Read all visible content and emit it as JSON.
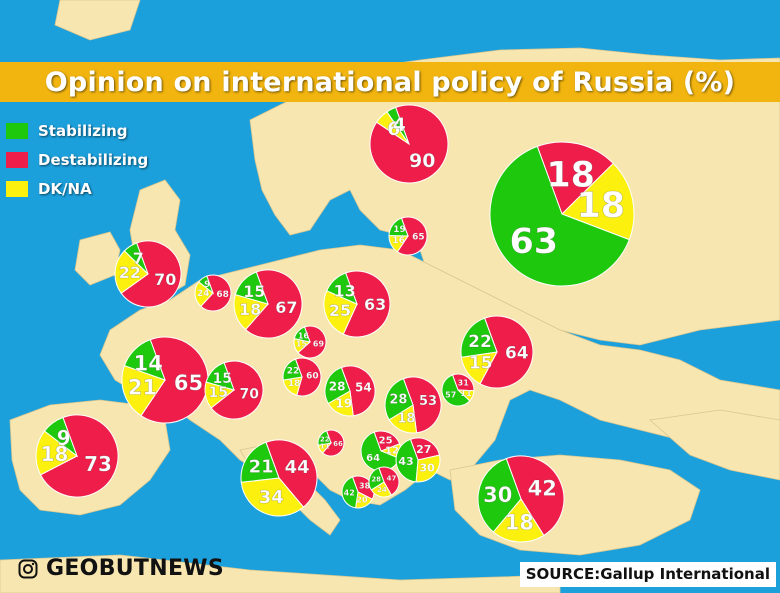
{
  "title": "Opinion on international policy of Russia (%)",
  "colors": {
    "stabilizing": "#1ec80c",
    "destabilizing": "#ef1d4a",
    "dk_na": "#fbf00e",
    "sea": "#1ca0dc",
    "land": "#f7e6b0",
    "title_bar": "#f2b50f"
  },
  "legend": {
    "stabilizing": "Stabilizing",
    "destabilizing": "Destabilizing",
    "dk_na": "DK/NA"
  },
  "brand": {
    "icon": "instagram-icon",
    "name": "GEOBUTNEWS"
  },
  "source": "SOURCE:Gallup International",
  "regions": [
    {
      "id": "finland",
      "values": {
        "stabilizing": 4,
        "destabilizing": 90,
        "dk_na": 6
      },
      "labels": {
        "stabilizing": "4",
        "destabilizing": "90",
        "dk_na": "6"
      }
    },
    {
      "id": "russia",
      "values": {
        "stabilizing": 63,
        "destabilizing": 18,
        "dk_na": 18
      },
      "labels": {
        "stabilizing": "63",
        "destabilizing": "18",
        "dk_na": "18"
      }
    },
    {
      "id": "latvia",
      "values": {
        "stabilizing": 19,
        "destabilizing": 65,
        "dk_na": 16
      },
      "labels": {
        "stabilizing": "19",
        "destabilizing": "65",
        "dk_na": "16"
      }
    },
    {
      "id": "uk",
      "values": {
        "stabilizing": 7,
        "destabilizing": 70,
        "dk_na": 22
      },
      "labels": {
        "stabilizing": "7",
        "destabilizing": "70",
        "dk_na": "22"
      }
    },
    {
      "id": "netherlands",
      "values": {
        "stabilizing": 9,
        "destabilizing": 68,
        "dk_na": 24
      },
      "labels": {
        "stabilizing": "9",
        "destabilizing": "68",
        "dk_na": "24"
      }
    },
    {
      "id": "germany",
      "values": {
        "stabilizing": 15,
        "destabilizing": 67,
        "dk_na": 18
      },
      "labels": {
        "stabilizing": "15",
        "destabilizing": "67",
        "dk_na": "18"
      }
    },
    {
      "id": "poland",
      "values": {
        "stabilizing": 13,
        "destabilizing": 63,
        "dk_na": 25
      },
      "labels": {
        "stabilizing": "13",
        "destabilizing": "63",
        "dk_na": "25"
      }
    },
    {
      "id": "czechia",
      "values": {
        "stabilizing": 16,
        "destabilizing": 69,
        "dk_na": 15
      },
      "labels": {
        "stabilizing": "16",
        "destabilizing": "69",
        "dk_na": "15"
      }
    },
    {
      "id": "ukraine",
      "values": {
        "stabilizing": 22,
        "destabilizing": 64,
        "dk_na": 15
      },
      "labels": {
        "stabilizing": "22",
        "destabilizing": "64",
        "dk_na": "15"
      }
    },
    {
      "id": "france",
      "values": {
        "stabilizing": 14,
        "destabilizing": 65,
        "dk_na": 21
      },
      "labels": {
        "stabilizing": "14",
        "destabilizing": "65",
        "dk_na": "21"
      }
    },
    {
      "id": "switzerland",
      "values": {
        "stabilizing": 15,
        "destabilizing": 70,
        "dk_na": 15
      },
      "labels": {
        "stabilizing": "15",
        "destabilizing": "70",
        "dk_na": "15"
      }
    },
    {
      "id": "austria",
      "values": {
        "stabilizing": 22,
        "destabilizing": 60,
        "dk_na": 18
      },
      "labels": {
        "stabilizing": "22",
        "destabilizing": "60",
        "dk_na": "18"
      }
    },
    {
      "id": "hungary",
      "values": {
        "stabilizing": 28,
        "destabilizing": 54,
        "dk_na": 19
      },
      "labels": {
        "stabilizing": "28",
        "destabilizing": "54",
        "dk_na": "19"
      }
    },
    {
      "id": "romania",
      "values": {
        "stabilizing": 28,
        "destabilizing": 53,
        "dk_na": 18
      },
      "labels": {
        "stabilizing": "28",
        "destabilizing": "53",
        "dk_na": "18"
      }
    },
    {
      "id": "moldova",
      "values": {
        "stabilizing": 57,
        "destabilizing": 31,
        "dk_na": 11
      },
      "labels": {
        "stabilizing": "57",
        "destabilizing": "31",
        "dk_na": "11"
      }
    },
    {
      "id": "spain",
      "values": {
        "stabilizing": 9,
        "destabilizing": 73,
        "dk_na": 18
      },
      "labels": {
        "stabilizing": "9",
        "destabilizing": "73",
        "dk_na": "18"
      }
    },
    {
      "id": "slovenia",
      "values": {
        "stabilizing": 22,
        "destabilizing": 66,
        "dk_na": 11
      },
      "labels": {
        "stabilizing": "22",
        "destabilizing": "66",
        "dk_na": "11"
      }
    },
    {
      "id": "serbia",
      "values": {
        "stabilizing": 64,
        "destabilizing": 25,
        "dk_na": 12
      },
      "labels": {
        "stabilizing": "64",
        "destabilizing": "25",
        "dk_na": "12"
      }
    },
    {
      "id": "bulgaria",
      "values": {
        "stabilizing": 43,
        "destabilizing": 27,
        "dk_na": 30
      },
      "labels": {
        "stabilizing": "43",
        "destabilizing": "27",
        "dk_na": "30"
      }
    },
    {
      "id": "italy",
      "values": {
        "stabilizing": 21,
        "destabilizing": 44,
        "dk_na": 34
      },
      "labels": {
        "stabilizing": "21",
        "destabilizing": "44",
        "dk_na": "34"
      }
    },
    {
      "id": "montenegro",
      "values": {
        "stabilizing": 42,
        "destabilizing": 38,
        "dk_na": 20
      },
      "labels": {
        "stabilizing": "42",
        "destabilizing": "38",
        "dk_na": "20"
      }
    },
    {
      "id": "north-macedonia",
      "values": {
        "stabilizing": 28,
        "destabilizing": 47,
        "dk_na": 24
      },
      "labels": {
        "stabilizing": "28",
        "destabilizing": "47",
        "dk_na": "24"
      }
    },
    {
      "id": "turkey",
      "values": {
        "stabilizing": 30,
        "destabilizing": 42,
        "dk_na": 18
      },
      "labels": {
        "stabilizing": "30",
        "destabilizing": "42",
        "dk_na": "18"
      }
    }
  ]
}
